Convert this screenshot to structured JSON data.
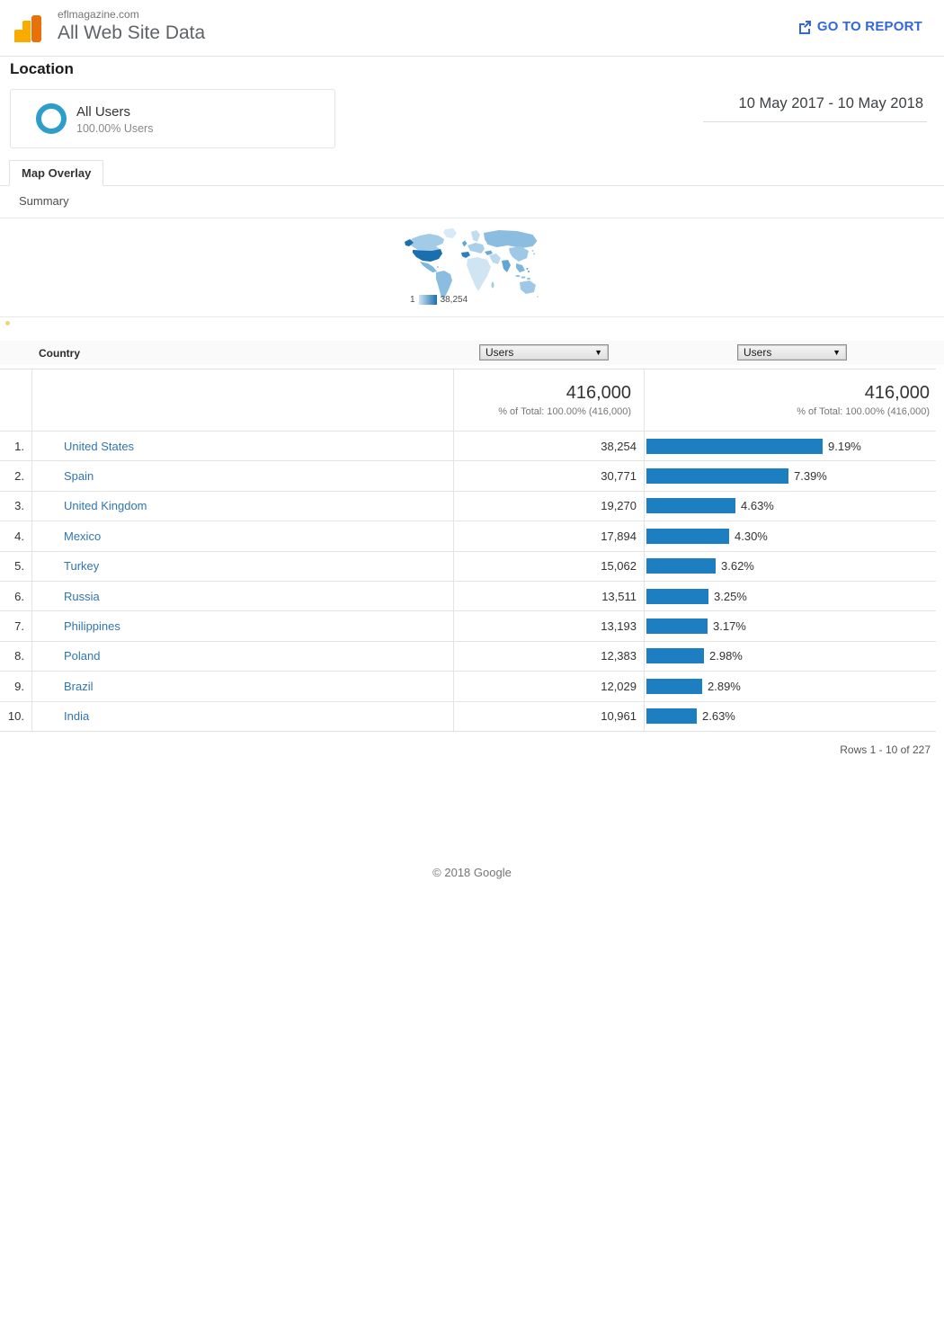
{
  "header": {
    "site": "eflmagazine.com",
    "view": "All Web Site Data",
    "go_to_report": "GO TO REPORT"
  },
  "report": {
    "title": "Location",
    "segment_name": "All Users",
    "segment_detail": "100.00% Users",
    "date_range": "10 May 2017 - 10 May 2018",
    "tab": "Map Overlay",
    "section_label": "Summary"
  },
  "map": {
    "legend_min": "1",
    "legend_max": "38,254"
  },
  "table": {
    "country_header": "Country",
    "metric_selects": [
      "Users",
      "Users"
    ],
    "total_users": "416,000",
    "total_users_note": "% of Total: 100.00% (416,000)",
    "total_pct": "416,000",
    "total_pct_note": "% of Total: 100.00% (416,000)",
    "rows": [
      {
        "rank": "1.",
        "country": "United States",
        "users": "38,254",
        "pct": 9.19,
        "pct_label": "9.19%"
      },
      {
        "rank": "2.",
        "country": "Spain",
        "users": "30,771",
        "pct": 7.39,
        "pct_label": "7.39%"
      },
      {
        "rank": "3.",
        "country": "United Kingdom",
        "users": "19,270",
        "pct": 4.63,
        "pct_label": "4.63%"
      },
      {
        "rank": "4.",
        "country": "Mexico",
        "users": "17,894",
        "pct": 4.3,
        "pct_label": "4.30%"
      },
      {
        "rank": "5.",
        "country": "Turkey",
        "users": "15,062",
        "pct": 3.62,
        "pct_label": "3.62%"
      },
      {
        "rank": "6.",
        "country": "Russia",
        "users": "13,511",
        "pct": 3.25,
        "pct_label": "3.25%"
      },
      {
        "rank": "7.",
        "country": "Philippines",
        "users": "13,193",
        "pct": 3.17,
        "pct_label": "3.17%"
      },
      {
        "rank": "8.",
        "country": "Poland",
        "users": "12,383",
        "pct": 2.98,
        "pct_label": "2.98%"
      },
      {
        "rank": "9.",
        "country": "Brazil",
        "users": "12,029",
        "pct": 2.89,
        "pct_label": "2.89%"
      },
      {
        "rank": "10.",
        "country": "India",
        "users": "10,961",
        "pct": 2.63,
        "pct_label": "2.63%"
      }
    ],
    "pagination": "Rows 1 - 10 of 227"
  },
  "footer": {
    "copyright": "© 2018 Google"
  },
  "colors": {
    "bar": "#1d7fc2",
    "link": "#3175b0",
    "accent_blue": "#3367d6",
    "map_max": "#1a6fae"
  }
}
